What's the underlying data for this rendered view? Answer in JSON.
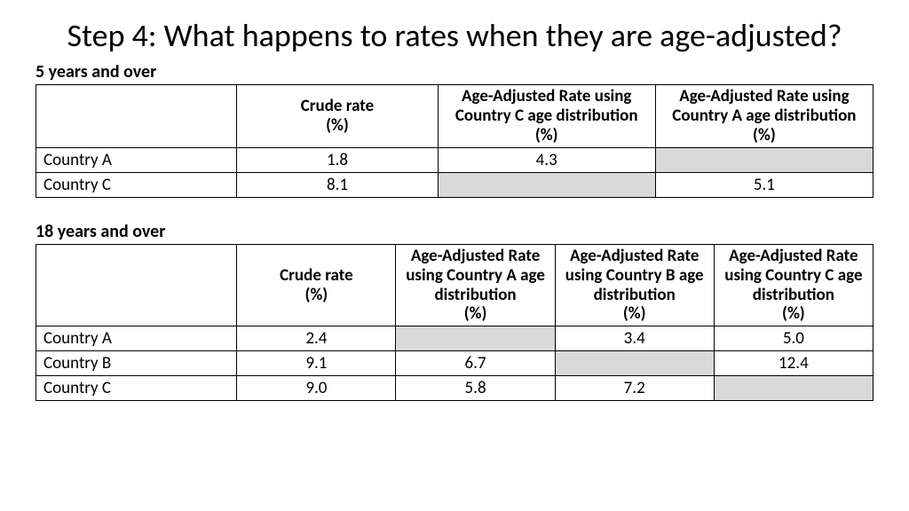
{
  "title": "Step 4: What happens to rates when they are age-adjusted?",
  "section1": {
    "label": "5 years and over",
    "columns": [
      "",
      "Crude rate\n(%)",
      "Age-Adjusted Rate using Country C age distribution\n(%)",
      "Age-Adjusted Rate using Country A age distribution\n(%)"
    ],
    "rows": [
      {
        "label": "Country A",
        "cells": [
          "1.8",
          "4.3",
          null
        ]
      },
      {
        "label": "Country C",
        "cells": [
          "8.1",
          null,
          "5.1"
        ]
      }
    ]
  },
  "section2": {
    "label": "18 years and over",
    "columns": [
      "",
      "Crude rate\n(%)",
      "Age-Adjusted Rate using Country A age distribution\n(%)",
      "Age-Adjusted Rate using Country B age distribution\n(%)",
      "Age-Adjusted Rate using Country C age distribution\n(%)"
    ],
    "rows": [
      {
        "label": "Country A",
        "cells": [
          "2.4",
          null,
          "3.4",
          "5.0"
        ]
      },
      {
        "label": "Country B",
        "cells": [
          "9.1",
          "6.7",
          null,
          "12.4"
        ]
      },
      {
        "label": "Country C",
        "cells": [
          "9.0",
          "5.8",
          "7.2",
          null
        ]
      }
    ]
  },
  "style": {
    "shaded_bg": "#d9d9d9",
    "border_color": "#000000",
    "background": "#ffffff",
    "title_fontsize": 36,
    "label_fontsize": 20,
    "cell_fontsize": 19
  }
}
